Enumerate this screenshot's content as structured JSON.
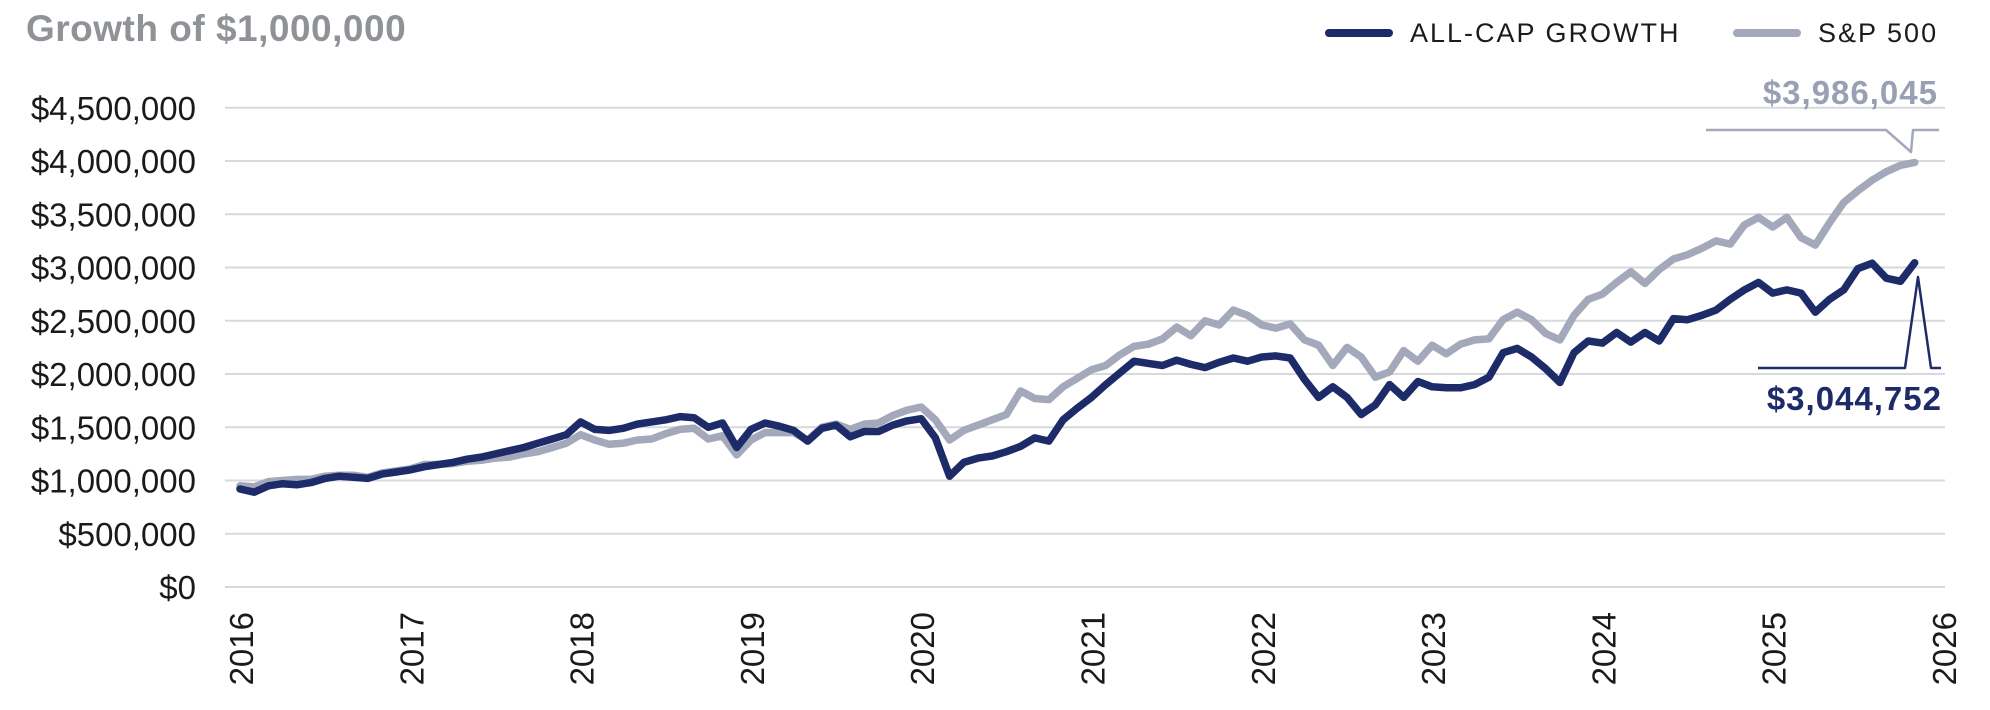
{
  "title": "Growth of $1,000,000",
  "legend": [
    {
      "label": "ALL-CAP GROWTH",
      "color": "#1e2b69"
    },
    {
      "label": "S&P 500",
      "color": "#a3a8ba"
    }
  ],
  "colors": {
    "navy": "#1e2b69",
    "gray": "#a3a8ba",
    "gray_label": "#9aa0b4",
    "grid": "#d8d9db",
    "axis_text": "#1a1a1a",
    "title_text": "#8f9296"
  },
  "chart_data": {
    "type": "line",
    "title": "Growth of $1,000,000",
    "frequency": "monthly",
    "x_start": "2016-01",
    "x_end": "2025-11",
    "x_tick_labels": [
      "2016",
      "2017",
      "2018",
      "2019",
      "2020",
      "2021",
      "2022",
      "2023",
      "2024",
      "2025",
      "2026"
    ],
    "y_tick_labels": [
      "$0",
      "$500,000",
      "$1,000,000",
      "$1,500,000",
      "$2,000,000",
      "$2,500,000",
      "$3,000,000",
      "$3,500,000",
      "$4,000,000",
      "$4,500,000"
    ],
    "ylim": [
      0,
      4500000
    ],
    "y_tick_step": 500000,
    "grid": "horizontal",
    "legend_position": "top-right",
    "series": [
      {
        "name": "S&P 500",
        "color": "#a3a8ba",
        "end_label": "$3,986,045",
        "end_value": 3986045,
        "values_millions": [
          0.95,
          0.94,
          0.99,
          1.0,
          1.01,
          1.01,
          1.04,
          1.05,
          1.05,
          1.03,
          1.07,
          1.09,
          1.11,
          1.15,
          1.15,
          1.16,
          1.18,
          1.19,
          1.21,
          1.22,
          1.25,
          1.27,
          1.31,
          1.35,
          1.43,
          1.38,
          1.34,
          1.35,
          1.38,
          1.39,
          1.44,
          1.48,
          1.49,
          1.39,
          1.42,
          1.24,
          1.38,
          1.45,
          1.45,
          1.45,
          1.38,
          1.5,
          1.53,
          1.48,
          1.53,
          1.54,
          1.61,
          1.66,
          1.69,
          1.57,
          1.38,
          1.47,
          1.52,
          1.57,
          1.62,
          1.84,
          1.77,
          1.76,
          1.88,
          1.96,
          2.04,
          2.08,
          2.18,
          2.26,
          2.28,
          2.33,
          2.44,
          2.36,
          2.5,
          2.46,
          2.6,
          2.55,
          2.46,
          2.43,
          2.47,
          2.32,
          2.27,
          2.08,
          2.25,
          2.16,
          1.97,
          2.02,
          2.22,
          2.12,
          2.27,
          2.19,
          2.28,
          2.32,
          2.33,
          2.51,
          2.58,
          2.51,
          2.38,
          2.32,
          2.55,
          2.7,
          2.75,
          2.86,
          2.96,
          2.85,
          2.98,
          3.08,
          3.12,
          3.18,
          3.25,
          3.22,
          3.4,
          3.47,
          3.38,
          3.47,
          3.28,
          3.21,
          3.42,
          3.61,
          3.72,
          3.82,
          3.9,
          3.96,
          3.986045
        ]
      },
      {
        "name": "ALL-CAP GROWTH",
        "color": "#1e2b69",
        "end_label": "$3,044,752",
        "end_value": 3044752,
        "values_millions": [
          0.92,
          0.89,
          0.95,
          0.97,
          0.96,
          0.98,
          1.02,
          1.04,
          1.03,
          1.02,
          1.06,
          1.08,
          1.1,
          1.13,
          1.15,
          1.17,
          1.2,
          1.22,
          1.25,
          1.28,
          1.31,
          1.35,
          1.39,
          1.43,
          1.55,
          1.48,
          1.47,
          1.49,
          1.53,
          1.55,
          1.57,
          1.6,
          1.59,
          1.5,
          1.54,
          1.31,
          1.48,
          1.54,
          1.51,
          1.47,
          1.37,
          1.49,
          1.52,
          1.41,
          1.46,
          1.46,
          1.52,
          1.56,
          1.58,
          1.4,
          1.04,
          1.17,
          1.21,
          1.23,
          1.27,
          1.32,
          1.4,
          1.37,
          1.57,
          1.68,
          1.78,
          1.9,
          2.01,
          2.12,
          2.1,
          2.08,
          2.13,
          2.09,
          2.06,
          2.11,
          2.15,
          2.12,
          2.16,
          2.17,
          2.15,
          1.95,
          1.78,
          1.88,
          1.78,
          1.62,
          1.71,
          1.9,
          1.78,
          1.93,
          1.88,
          1.87,
          1.87,
          1.9,
          1.97,
          2.2,
          2.24,
          2.16,
          2.05,
          1.92,
          2.2,
          2.31,
          2.29,
          2.39,
          2.3,
          2.39,
          2.31,
          2.52,
          2.51,
          2.55,
          2.6,
          2.7,
          2.79,
          2.86,
          2.76,
          2.79,
          2.76,
          2.58,
          2.7,
          2.79,
          2.99,
          3.04,
          2.9,
          2.87,
          3.044752
        ]
      }
    ]
  }
}
